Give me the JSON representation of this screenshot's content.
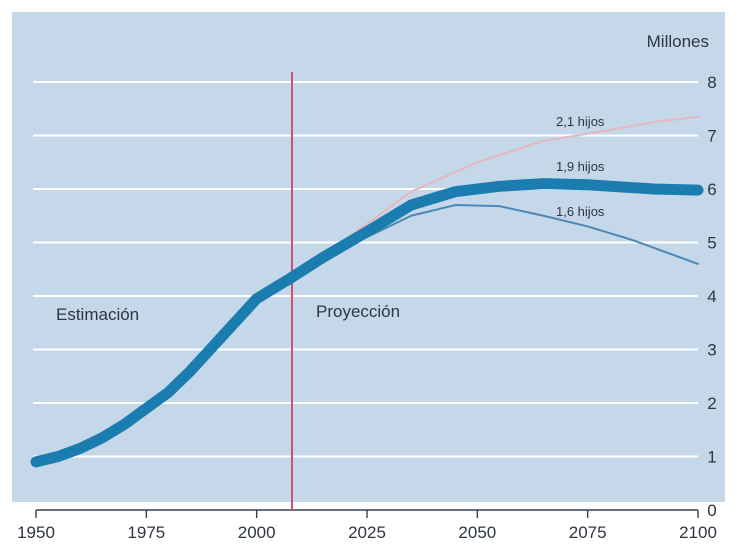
{
  "chart_data": {
    "type": "line",
    "title": "",
    "xlabel": "",
    "ylabel": "",
    "unit_label": "Millones",
    "x_ticks": [
      "1950",
      "1975",
      "2000",
      "2025",
      "2050",
      "2075",
      "2100"
    ],
    "y_ticks": [
      "0",
      "1",
      "2",
      "3",
      "4",
      "5",
      "6",
      "7",
      "8"
    ],
    "xlim": [
      1950,
      2100
    ],
    "ylim": [
      0,
      8
    ],
    "grid": true,
    "divider_year": 2008,
    "region_labels": {
      "estimate": "Estimación",
      "projection": "Proyección"
    },
    "series": [
      {
        "name": "Estimación",
        "points": [
          [
            1950,
            0.9
          ],
          [
            1955,
            1.0
          ],
          [
            1960,
            1.15
          ],
          [
            1965,
            1.35
          ],
          [
            1970,
            1.6
          ],
          [
            1975,
            1.9
          ],
          [
            1980,
            2.2
          ],
          [
            1985,
            2.6
          ],
          [
            1990,
            3.05
          ],
          [
            1995,
            3.5
          ],
          [
            2000,
            3.95
          ],
          [
            2005,
            4.2
          ],
          [
            2008,
            4.35
          ]
        ]
      },
      {
        "name": "2,1 hijos",
        "points": [
          [
            2008,
            4.35
          ],
          [
            2015,
            4.75
          ],
          [
            2025,
            5.35
          ],
          [
            2035,
            5.95
          ],
          [
            2050,
            6.5
          ],
          [
            2065,
            6.9
          ],
          [
            2080,
            7.1
          ],
          [
            2090,
            7.25
          ],
          [
            2100,
            7.35
          ]
        ]
      },
      {
        "name": "1,9 hijos",
        "points": [
          [
            2008,
            4.35
          ],
          [
            2015,
            4.72
          ],
          [
            2025,
            5.2
          ],
          [
            2035,
            5.7
          ],
          [
            2045,
            5.95
          ],
          [
            2055,
            6.05
          ],
          [
            2065,
            6.1
          ],
          [
            2075,
            6.08
          ],
          [
            2090,
            6.0
          ],
          [
            2100,
            5.98
          ]
        ]
      },
      {
        "name": "1,6 hijos",
        "points": [
          [
            2008,
            4.35
          ],
          [
            2015,
            4.7
          ],
          [
            2025,
            5.1
          ],
          [
            2035,
            5.5
          ],
          [
            2045,
            5.7
          ],
          [
            2055,
            5.68
          ],
          [
            2065,
            5.5
          ],
          [
            2075,
            5.3
          ],
          [
            2085,
            5.05
          ],
          [
            2100,
            4.6
          ]
        ]
      }
    ],
    "colors": {
      "background": "#c5d8ea",
      "grid": "#ffffff",
      "main_line": "#1b7cb0",
      "line_2_1": "#e7b6bf",
      "line_1_6": "#4a88b6",
      "divider": "#cc4f74",
      "text": "#2f3640"
    }
  }
}
